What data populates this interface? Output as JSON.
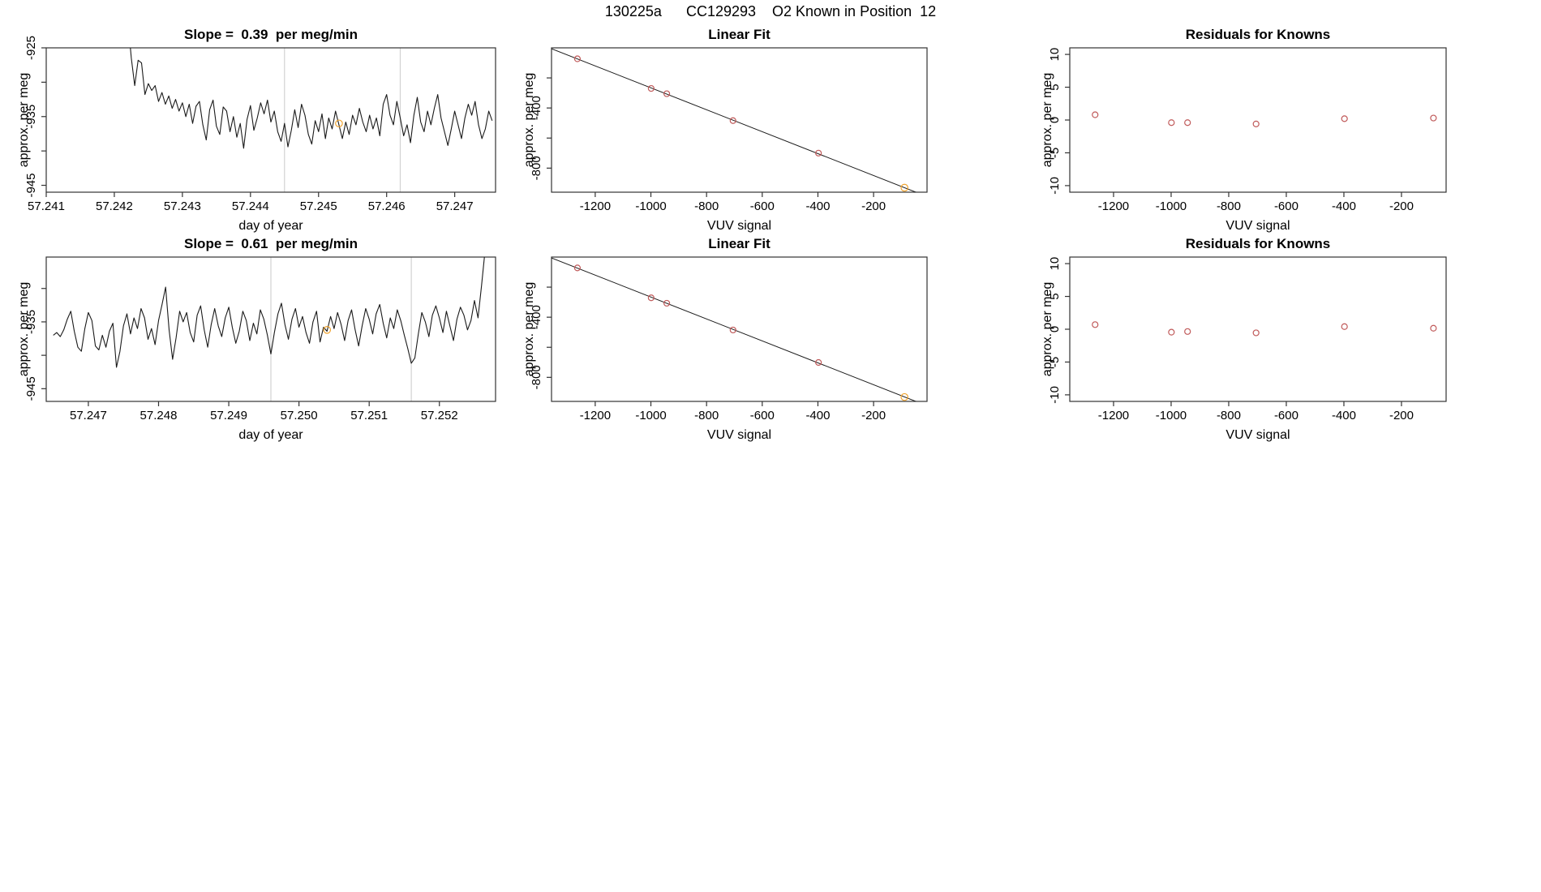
{
  "page_title": "130225a      CC129293    O2 Known in Position  12",
  "colors": {
    "frame": "#333333",
    "series": "#1a1a1a",
    "vline": "#d2d2d2",
    "red": "#c05a5a",
    "orange": "#f0a430"
  },
  "chart_data": [
    {
      "type": "line",
      "title": "Slope =  0.39  per meg/min",
      "xlabel": "day of year",
      "ylabel": "approx. per meg",
      "xlim": [
        57.241,
        57.2476
      ],
      "ylim": [
        -946,
        -925
      ],
      "xticks": [
        {
          "v": 57.241,
          "l": "57.241"
        },
        {
          "v": 57.242,
          "l": "57.242"
        },
        {
          "v": 57.243,
          "l": "57.243"
        },
        {
          "v": 57.244,
          "l": "57.244"
        },
        {
          "v": 57.245,
          "l": "57.245"
        },
        {
          "v": 57.246,
          "l": "57.246"
        },
        {
          "v": 57.247,
          "l": "57.247"
        }
      ],
      "yticks": [
        {
          "v": -945,
          "l": "-945"
        },
        {
          "v": -940
        },
        {
          "v": -935,
          "l": "-935"
        },
        {
          "v": -930
        },
        {
          "v": -925,
          "l": "-925"
        }
      ],
      "vlines": [
        57.2445,
        57.2462
      ],
      "line": {
        "x0": 57.2422,
        "dx": 5e-05,
        "y": [
          -921.0,
          -926.5,
          -930.5,
          -926.8,
          -927.2,
          -931.8,
          -930.2,
          -931.2,
          -930.5,
          -932.8,
          -931.5,
          -933.2,
          -932.0,
          -933.8,
          -932.5,
          -934.2,
          -933.0,
          -935.0,
          -933.2,
          -936.0,
          -933.5,
          -932.8,
          -936.2,
          -938.4,
          -934.0,
          -932.6,
          -936.4,
          -937.6,
          -933.6,
          -934.2,
          -937.2,
          -935.0,
          -938.0,
          -936.0,
          -939.6,
          -935.4,
          -933.4,
          -937.0,
          -935.2,
          -933.0,
          -934.6,
          -932.6,
          -935.8,
          -934.2,
          -937.2,
          -938.6,
          -936.0,
          -939.4,
          -937.0,
          -934.0,
          -936.6,
          -933.2,
          -934.8,
          -937.6,
          -939.0,
          -935.6,
          -937.2,
          -934.6,
          -938.2,
          -935.2,
          -936.8,
          -934.2,
          -936.2,
          -938.2,
          -935.8,
          -937.6,
          -934.8,
          -936.2,
          -933.8,
          -935.8,
          -937.2,
          -934.8,
          -936.8,
          -935.2,
          -937.8,
          -933.2,
          -931.8,
          -934.8,
          -936.2,
          -932.8,
          -935.2,
          -937.8,
          -936.2,
          -938.8,
          -934.8,
          -932.2,
          -935.8,
          -937.2,
          -934.2,
          -936.2,
          -933.8,
          -931.8,
          -935.2,
          -937.2,
          -939.2,
          -936.8,
          -934.2,
          -936.2,
          -938.2,
          -935.2,
          -933.2,
          -934.8,
          -932.8,
          -936.2,
          -938.2,
          -936.8,
          -934.2,
          -935.6
        ]
      },
      "points": [
        {
          "x": 57.2453,
          "y": -936.0,
          "c": "orange"
        }
      ]
    },
    {
      "type": "scatter",
      "title": "Linear Fit",
      "xlabel": "VUV signal",
      "ylabel": "approx. per meg",
      "xlim": [
        -1357,
        -8
      ],
      "ylim": [
        -960,
        0
      ],
      "xticks": [
        {
          "v": -1200,
          "l": "-1200"
        },
        {
          "v": -1000,
          "l": "-1000"
        },
        {
          "v": -800,
          "l": "-800"
        },
        {
          "v": -600,
          "l": "-600"
        },
        {
          "v": -400,
          "l": "-400"
        },
        {
          "v": -200,
          "l": "-200"
        }
      ],
      "yticks": [
        {
          "v": -800,
          "l": "-800"
        },
        {
          "v": -600
        },
        {
          "v": -400,
          "l": "-400"
        },
        {
          "v": -200
        }
      ],
      "fit": [
        [
          -1357,
          -5.7
        ],
        [
          -8,
          -989.2
        ]
      ],
      "points": [
        {
          "x": -1264,
          "y": -73,
          "c": "red"
        },
        {
          "x": -999,
          "y": -270,
          "c": "red"
        },
        {
          "x": -943,
          "y": -305,
          "c": "red"
        },
        {
          "x": -705,
          "y": -484,
          "c": "red"
        },
        {
          "x": -398,
          "y": -700,
          "c": "red"
        },
        {
          "x": -89,
          "y": -930,
          "c": "orange"
        }
      ]
    },
    {
      "type": "scatter",
      "title": "Residuals for Knowns",
      "xlabel": "VUV signal",
      "ylabel": "approx. per meg",
      "xlim": [
        -1352,
        -45
      ],
      "ylim": [
        -11,
        11
      ],
      "xticks": [
        {
          "v": -1200,
          "l": "-1200"
        },
        {
          "v": -1000,
          "l": "-1000"
        },
        {
          "v": -800,
          "l": "-800"
        },
        {
          "v": -600,
          "l": "-600"
        },
        {
          "v": -400,
          "l": "-400"
        },
        {
          "v": -200,
          "l": "-200"
        }
      ],
      "yticks": [
        {
          "v": -10,
          "l": "-10"
        },
        {
          "v": -5,
          "l": "-5"
        },
        {
          "v": 0,
          "l": "0"
        },
        {
          "v": 5,
          "l": "5"
        },
        {
          "v": 10,
          "l": "10"
        }
      ],
      "points": [
        {
          "x": -1264,
          "y": 0.8,
          "c": "red"
        },
        {
          "x": -999,
          "y": -0.4,
          "c": "red"
        },
        {
          "x": -943,
          "y": -0.4,
          "c": "red"
        },
        {
          "x": -705,
          "y": -0.6,
          "c": "red"
        },
        {
          "x": -398,
          "y": 0.2,
          "c": "red"
        },
        {
          "x": -89,
          "y": 0.3,
          "c": "red"
        }
      ]
    },
    {
      "type": "line",
      "title": "Slope =  0.61  per meg/min",
      "xlabel": "day of year",
      "ylabel": "approx. per meg",
      "xlim": [
        57.2464,
        57.2528
      ],
      "ylim": [
        -946.9,
        -925.3
      ],
      "xticks": [
        {
          "v": 57.247,
          "l": "57.247"
        },
        {
          "v": 57.248,
          "l": "57.248"
        },
        {
          "v": 57.249,
          "l": "57.249"
        },
        {
          "v": 57.25,
          "l": "57.250"
        },
        {
          "v": 57.251,
          "l": "57.251"
        },
        {
          "v": 57.252,
          "l": "57.252"
        }
      ],
      "yticks": [
        {
          "v": -945,
          "l": "-945"
        },
        {
          "v": -940
        },
        {
          "v": -935,
          "l": "-935"
        },
        {
          "v": -930
        }
      ],
      "vlines": [
        57.2496,
        57.2516
      ],
      "line": {
        "x0": 57.2465,
        "dx": 5e-05,
        "y": [
          -937.0,
          -936.6,
          -937.2,
          -936.2,
          -934.6,
          -933.4,
          -936.4,
          -938.8,
          -939.4,
          -936.0,
          -933.6,
          -934.8,
          -938.6,
          -939.2,
          -937.0,
          -938.8,
          -936.4,
          -935.2,
          -941.8,
          -939.4,
          -935.6,
          -933.8,
          -936.8,
          -934.4,
          -936.0,
          -933.0,
          -934.4,
          -937.6,
          -936.0,
          -938.4,
          -934.8,
          -932.4,
          -929.8,
          -936.2,
          -940.6,
          -937.4,
          -933.4,
          -935.0,
          -933.6,
          -936.6,
          -938.0,
          -934.0,
          -932.6,
          -936.2,
          -938.8,
          -935.4,
          -933.0,
          -935.6,
          -937.2,
          -934.4,
          -932.8,
          -935.8,
          -938.2,
          -936.4,
          -933.4,
          -934.8,
          -937.8,
          -935.2,
          -936.8,
          -933.2,
          -934.6,
          -937.0,
          -939.8,
          -936.6,
          -933.8,
          -932.2,
          -935.4,
          -937.6,
          -934.6,
          -933.0,
          -935.8,
          -934.2,
          -936.6,
          -938.2,
          -935.0,
          -933.4,
          -938.0,
          -935.8,
          -936.4,
          -934.2,
          -936.0,
          -933.6,
          -935.4,
          -937.8,
          -934.8,
          -933.2,
          -936.2,
          -938.6,
          -935.6,
          -933.0,
          -934.6,
          -936.8,
          -933.8,
          -932.4,
          -935.2,
          -937.4,
          -934.4,
          -936.0,
          -933.2,
          -934.8,
          -937.0,
          -939.0,
          -941.2,
          -940.4,
          -936.8,
          -933.6,
          -935.0,
          -937.2,
          -934.0,
          -932.6,
          -934.4,
          -936.6,
          -933.4,
          -935.6,
          -937.8,
          -934.6,
          -932.8,
          -934.0,
          -936.2,
          -934.8,
          -931.8,
          -934.4,
          -929.6,
          -924.4,
          -918.0
        ]
      },
      "points": [
        {
          "x": 57.2504,
          "y": -936.2,
          "c": "orange"
        }
      ]
    },
    {
      "type": "scatter",
      "title": "Linear Fit",
      "xlabel": "VUV signal",
      "ylabel": "approx. per meg",
      "xlim": [
        -1357,
        -8
      ],
      "ylim": [
        -960,
        0
      ],
      "xticks": [
        {
          "v": -1200,
          "l": "-1200"
        },
        {
          "v": -1000,
          "l": "-1000"
        },
        {
          "v": -800,
          "l": "-800"
        },
        {
          "v": -600,
          "l": "-600"
        },
        {
          "v": -400,
          "l": "-400"
        },
        {
          "v": -200,
          "l": "-200"
        }
      ],
      "yticks": [
        {
          "v": -800,
          "l": "-800"
        },
        {
          "v": -600
        },
        {
          "v": -400,
          "l": "-400"
        },
        {
          "v": -200
        }
      ],
      "fit": [
        [
          -1357,
          -5.7
        ],
        [
          -8,
          -989.2
        ]
      ],
      "points": [
        {
          "x": -1264,
          "y": -72,
          "c": "red"
        },
        {
          "x": -999,
          "y": -271,
          "c": "red"
        },
        {
          "x": -943,
          "y": -307,
          "c": "red"
        },
        {
          "x": -705,
          "y": -485,
          "c": "red"
        },
        {
          "x": -398,
          "y": -701,
          "c": "red"
        },
        {
          "x": -89,
          "y": -931,
          "c": "orange"
        }
      ]
    },
    {
      "type": "scatter",
      "title": "Residuals for Knowns",
      "xlabel": "VUV signal",
      "ylabel": "approx. per meg",
      "xlim": [
        -1352,
        -45
      ],
      "ylim": [
        -11,
        11
      ],
      "xticks": [
        {
          "v": -1200,
          "l": "-1200"
        },
        {
          "v": -1000,
          "l": "-1000"
        },
        {
          "v": -800,
          "l": "-800"
        },
        {
          "v": -600,
          "l": "-600"
        },
        {
          "v": -400,
          "l": "-400"
        },
        {
          "v": -200,
          "l": "-200"
        }
      ],
      "yticks": [
        {
          "v": -10,
          "l": "-10"
        },
        {
          "v": -5,
          "l": "-5"
        },
        {
          "v": 0,
          "l": "0"
        },
        {
          "v": 5,
          "l": "5"
        },
        {
          "v": 10,
          "l": "10"
        }
      ],
      "points": [
        {
          "x": -1264,
          "y": 0.7,
          "c": "red"
        },
        {
          "x": -999,
          "y": -0.45,
          "c": "red"
        },
        {
          "x": -943,
          "y": -0.35,
          "c": "red"
        },
        {
          "x": -705,
          "y": -0.55,
          "c": "red"
        },
        {
          "x": -398,
          "y": 0.4,
          "c": "red"
        },
        {
          "x": -89,
          "y": 0.15,
          "c": "red"
        }
      ]
    }
  ]
}
